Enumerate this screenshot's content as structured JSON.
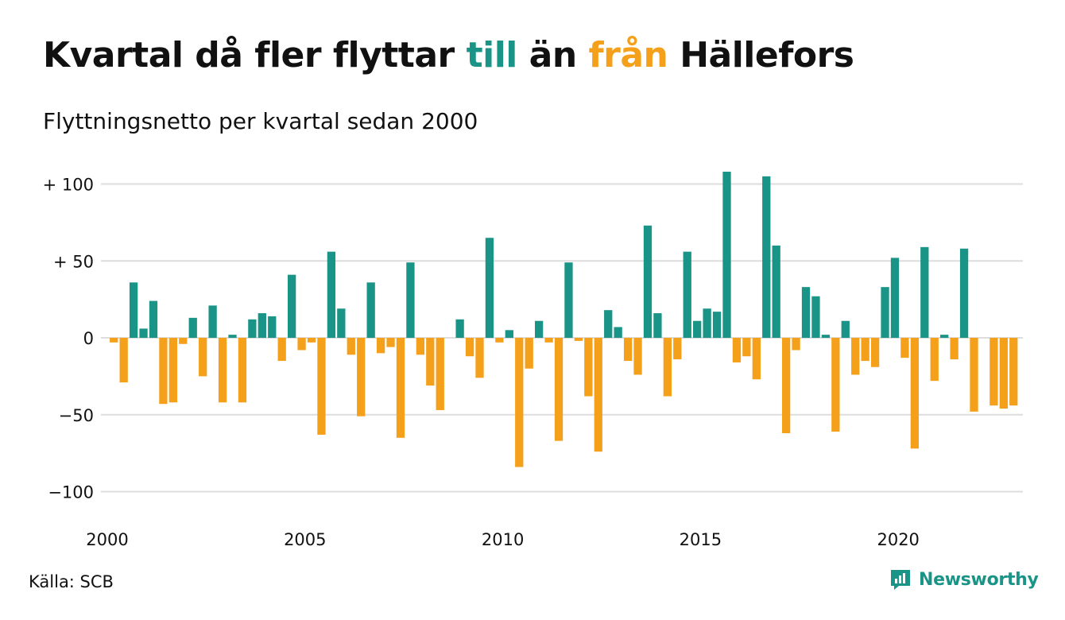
{
  "title": {
    "part1": "Kvartal då fler flyttar ",
    "pos_word": "till",
    "part2": " än ",
    "neg_word": "från",
    "part3": " Hällefors"
  },
  "subtitle": "Flyttningsnetto per kvartal sedan 2000",
  "source": "Källa: SCB",
  "brand": "Newsworthy",
  "colors": {
    "positive": "#1a9486",
    "negative": "#f5a01a",
    "grid": "#dddddd"
  },
  "chart_data": {
    "type": "bar",
    "x_start": "2000 Q1",
    "ylim": [
      -100,
      108
    ],
    "ytick_labels": [
      "−100",
      "−50",
      "0",
      "+  50",
      "+ 100"
    ],
    "ytick_values": [
      -100,
      -50,
      0,
      50,
      100
    ],
    "xtick_labels": [
      "2000",
      "2005",
      "2010",
      "2015",
      "2020"
    ],
    "grid": true,
    "values": [
      -3,
      -29,
      36,
      6,
      24,
      -43,
      -42,
      -4,
      13,
      -25,
      21,
      -42,
      2,
      -42,
      12,
      16,
      14,
      -15,
      41,
      -8,
      -3,
      -63,
      56,
      19,
      -11,
      -51,
      36,
      -10,
      -6,
      -65,
      49,
      -11,
      -31,
      -47,
      0,
      12,
      -12,
      -26,
      65,
      -3,
      5,
      -84,
      -20,
      11,
      -3,
      -67,
      49,
      -2,
      -38,
      -74,
      18,
      7,
      -15,
      -24,
      73,
      16,
      -38,
      -14,
      56,
      11,
      19,
      17,
      108,
      -16,
      -12,
      -27,
      105,
      60,
      -62,
      -8,
      33,
      27,
      2,
      -61,
      11,
      -24,
      -15,
      -19,
      33,
      52,
      -13,
      -72,
      59,
      -28,
      2,
      -14,
      58,
      -48,
      0,
      -44,
      -46,
      -44
    ]
  }
}
